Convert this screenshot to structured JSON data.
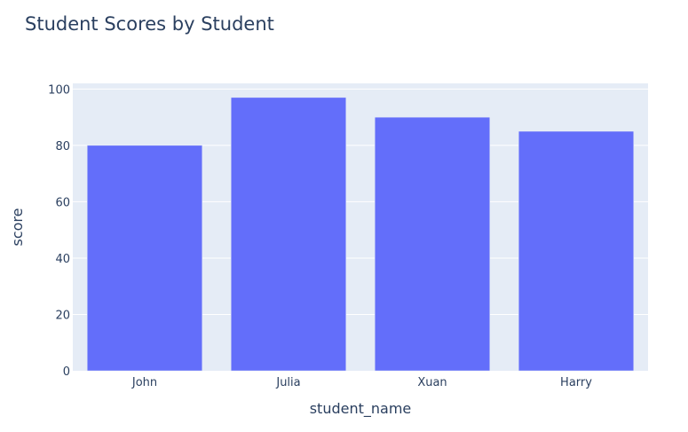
{
  "chart_data": {
    "type": "bar",
    "title": "Student Scores by Student",
    "xlabel": "student_name",
    "ylabel": "score",
    "categories": [
      "John",
      "Julia",
      "Xuan",
      "Harry"
    ],
    "values": [
      80,
      97,
      90,
      85
    ],
    "ylim": [
      0,
      102
    ],
    "yticks": [
      0,
      20,
      40,
      60,
      80,
      100
    ],
    "grid": true,
    "legend": "none",
    "colors": {
      "bar": "#636efa",
      "plot_background": "#e5ecf6",
      "grid": "#ffffff",
      "text": "#2a3f5f"
    }
  }
}
